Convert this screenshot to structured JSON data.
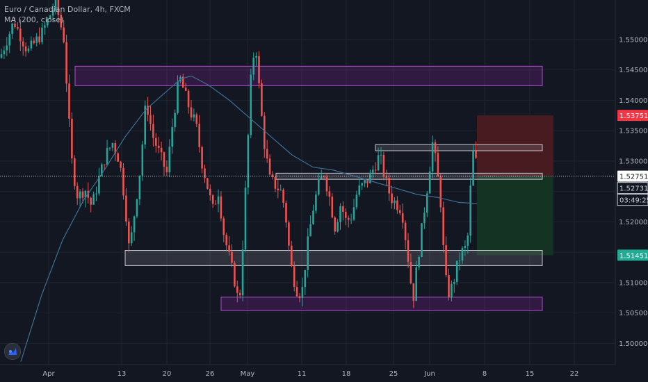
{
  "legend": {
    "symbol": "Euro / Canadian Dollar, 4h, FXCM",
    "indicator": "MA (200, close)"
  },
  "colors": {
    "background": "#131722",
    "grid": "#1f2430",
    "axis_text": "#b2b5be",
    "bull": "#26a69a",
    "bear": "#ef5350",
    "ma": "#3f6f93",
    "zone_purple": "#9c27b0",
    "zone_grey": "#9598a1",
    "stop_zone": "#4b1b22",
    "target_zone": "#143523",
    "stop_badge": "#f23645",
    "target_badge": "#22ab94"
  },
  "labels": {
    "stop_price": "1.53751",
    "last_price": "1.52751",
    "crosshair_price": "1.52731",
    "countdown": "03:49:25",
    "target_price": "1.51451"
  },
  "logo": "tradingview-logo-icon",
  "chart_data": {
    "type": "candlestick",
    "title": "Euro / Canadian Dollar, 4h, FXCM",
    "ylim": [
      1.4965,
      1.5565
    ],
    "yticks": [
      "1.55000",
      "1.54500",
      "1.54000",
      "1.53500",
      "1.53000",
      "1.52500",
      "1.52000",
      "1.51500",
      "1.51000",
      "1.50500",
      "1.50000"
    ],
    "xticks": [
      "Apr",
      "13",
      "20",
      "26",
      "May",
      "11",
      "18",
      "25",
      "Jun",
      "8",
      "15",
      "22"
    ],
    "grid": true,
    "price_path": [
      [
        0,
        1.547
      ],
      [
        20,
        1.553
      ],
      [
        40,
        1.548
      ],
      [
        60,
        1.551
      ],
      [
        80,
        1.556
      ],
      [
        92,
        1.55
      ],
      [
        100,
        1.535
      ],
      [
        104,
        1.529
      ],
      [
        112,
        1.524
      ],
      [
        122,
        1.5255
      ],
      [
        132,
        1.5225
      ],
      [
        142,
        1.527
      ],
      [
        152,
        1.531
      ],
      [
        162,
        1.533
      ],
      [
        172,
        1.53
      ],
      [
        180,
        1.523
      ],
      [
        186,
        1.515
      ],
      [
        194,
        1.522
      ],
      [
        202,
        1.529
      ],
      [
        210,
        1.54
      ],
      [
        220,
        1.534
      ],
      [
        230,
        1.531
      ],
      [
        240,
        1.528
      ],
      [
        248,
        1.536
      ],
      [
        258,
        1.544
      ],
      [
        266,
        1.541
      ],
      [
        274,
        1.538
      ],
      [
        282,
        1.536
      ],
      [
        290,
        1.53
      ],
      [
        298,
        1.526
      ],
      [
        306,
        1.522
      ],
      [
        314,
        1.525
      ],
      [
        322,
        1.518
      ],
      [
        330,
        1.514
      ],
      [
        338,
        1.51
      ],
      [
        344,
        1.506
      ],
      [
        350,
        1.518
      ],
      [
        356,
        1.532
      ],
      [
        362,
        1.546
      ],
      [
        368,
        1.549
      ],
      [
        374,
        1.54
      ],
      [
        380,
        1.533
      ],
      [
        388,
        1.527
      ],
      [
        396,
        1.526
      ],
      [
        404,
        1.525
      ],
      [
        410,
        1.522
      ],
      [
        418,
        1.513
      ],
      [
        426,
        1.509
      ],
      [
        434,
        1.508
      ],
      [
        442,
        1.516
      ],
      [
        450,
        1.522
      ],
      [
        458,
        1.526
      ],
      [
        466,
        1.528
      ],
      [
        474,
        1.524
      ],
      [
        482,
        1.519
      ],
      [
        490,
        1.523
      ],
      [
        498,
        1.52
      ],
      [
        506,
        1.521
      ],
      [
        514,
        1.525
      ],
      [
        522,
        1.526
      ],
      [
        530,
        1.527
      ],
      [
        538,
        1.529
      ],
      [
        546,
        1.531
      ],
      [
        554,
        1.527
      ],
      [
        562,
        1.524
      ],
      [
        570,
        1.523
      ],
      [
        578,
        1.522
      ],
      [
        586,
        1.515
      ],
      [
        594,
        1.507
      ],
      [
        600,
        1.513
      ],
      [
        608,
        1.52
      ],
      [
        616,
        1.527
      ],
      [
        622,
        1.533
      ],
      [
        628,
        1.529
      ],
      [
        634,
        1.523
      ],
      [
        640,
        1.511
      ],
      [
        646,
        1.508
      ],
      [
        652,
        1.51
      ],
      [
        658,
        1.513
      ],
      [
        664,
        1.515
      ],
      [
        672,
        1.516
      ],
      [
        678,
        1.528
      ],
      [
        682,
        1.533
      ],
      [
        686,
        1.528
      ]
    ],
    "ma_path": [
      [
        30,
        1.497
      ],
      [
        60,
        1.508
      ],
      [
        90,
        1.517
      ],
      [
        120,
        1.5235
      ],
      [
        150,
        1.5285
      ],
      [
        180,
        1.534
      ],
      [
        210,
        1.5385
      ],
      [
        240,
        1.5415
      ],
      [
        260,
        1.5435
      ],
      [
        275,
        1.544
      ],
      [
        300,
        1.5425
      ],
      [
        330,
        1.54
      ],
      [
        360,
        1.537
      ],
      [
        390,
        1.534
      ],
      [
        420,
        1.531
      ],
      [
        450,
        1.529
      ],
      [
        480,
        1.5285
      ],
      [
        510,
        1.5275
      ],
      [
        540,
        1.5265
      ],
      [
        570,
        1.5255
      ],
      [
        600,
        1.5245
      ],
      [
        630,
        1.524
      ],
      [
        660,
        1.5232
      ],
      [
        686,
        1.523
      ]
    ],
    "zones": [
      {
        "kind": "purple",
        "x": [
          108,
          780
        ],
        "y": [
          1.5456,
          1.5424
        ]
      },
      {
        "kind": "purple",
        "x": [
          318,
          780
        ],
        "y": [
          1.5076,
          1.5054
        ]
      },
      {
        "kind": "grey",
        "x": [
          540,
          780
        ],
        "y": [
          1.5327,
          1.5317
        ]
      },
      {
        "kind": "grey",
        "x": [
          397,
          780
        ],
        "y": [
          1.528,
          1.527
        ]
      },
      {
        "kind": "grey",
        "x": [
          180,
          780
        ],
        "y": [
          1.5153,
          1.5128
        ]
      }
    ],
    "position": {
      "x": [
        686,
        796
      ],
      "entry": 1.52751,
      "stop": 1.53751,
      "target": 1.51451
    }
  }
}
